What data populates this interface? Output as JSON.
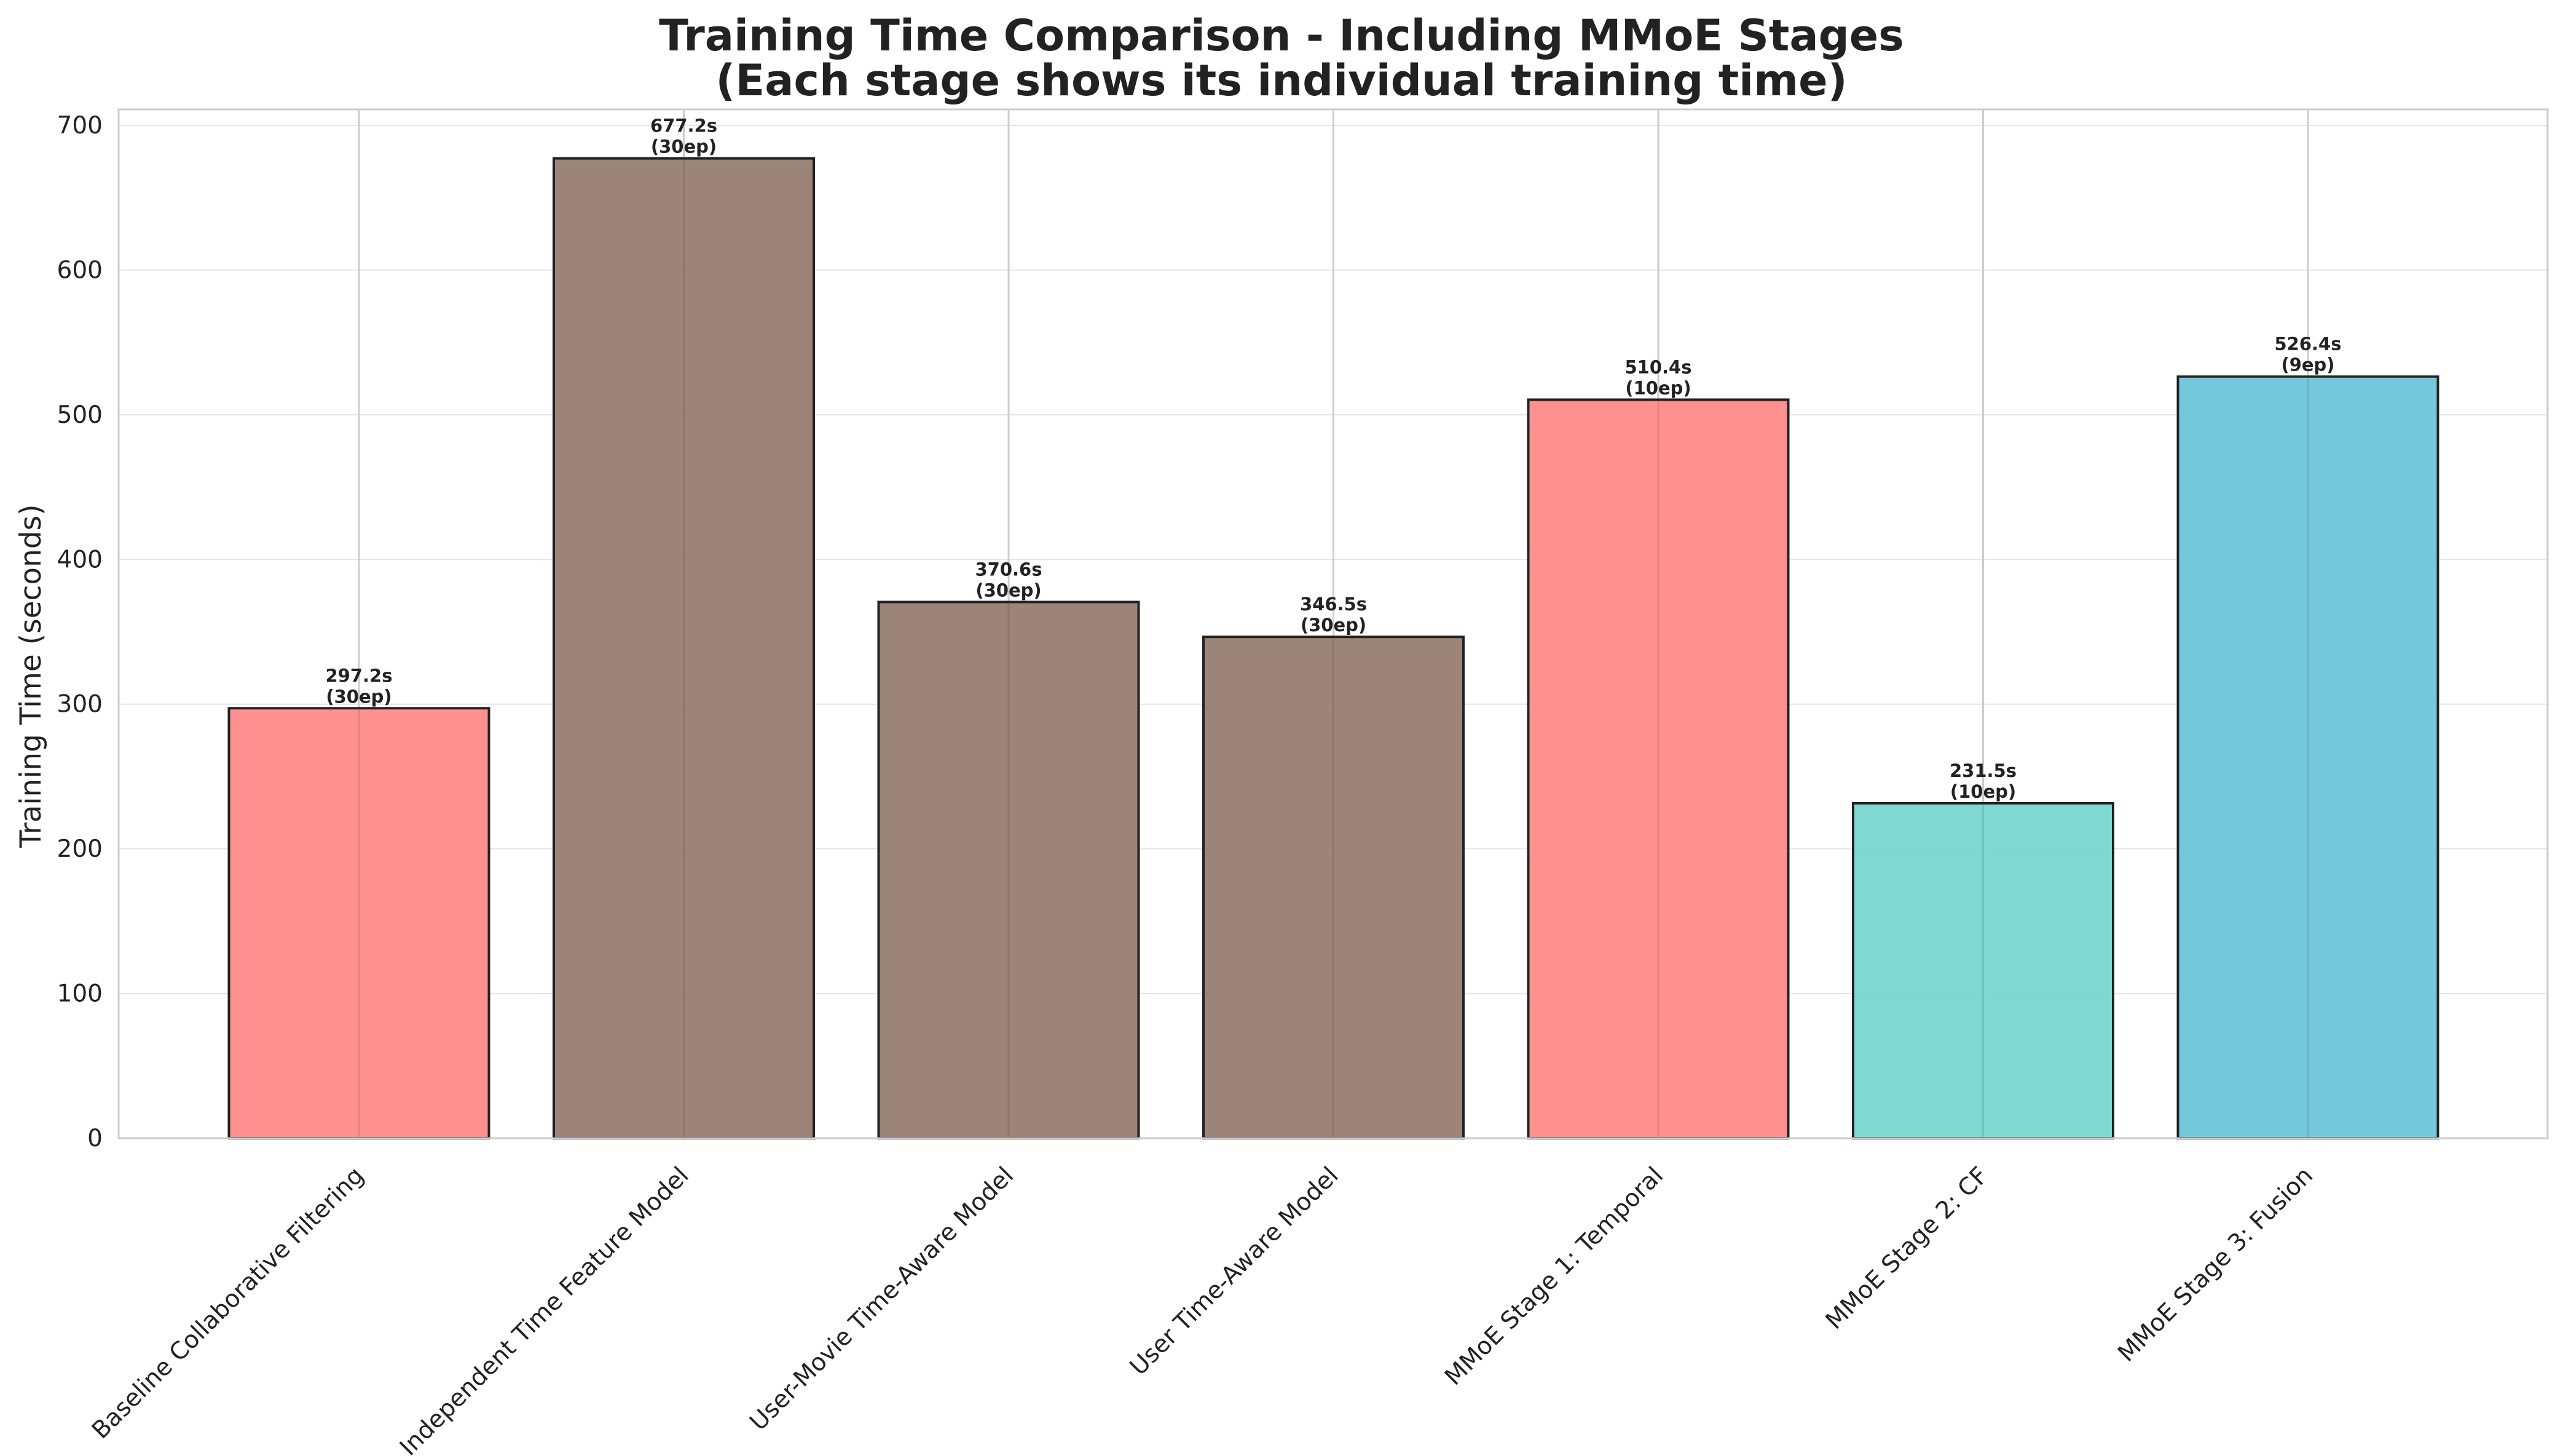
{
  "chart_data": {
    "type": "bar",
    "title": "Training Time Comparison - Including MMoE Stages",
    "subtitle": "(Each stage shows its individual training time)",
    "xlabel": "",
    "ylabel": "Training Time (seconds)",
    "ylim": [
      0,
      710
    ],
    "yticks": [
      0,
      100,
      200,
      300,
      400,
      500,
      600,
      700
    ],
    "grid": true,
    "categories": [
      "Baseline Collaborative Filtering",
      "Independent Time Feature Model",
      "User-Movie Time-Aware Model",
      "User Time-Aware Model",
      "MMoE Stage 1: Temporal",
      "MMoE Stage 2: CF",
      "MMoE Stage 3: Fusion"
    ],
    "values": [
      297.2,
      677.2,
      370.6,
      346.5,
      510.4,
      231.5,
      526.4
    ],
    "value_labels": [
      "297.2s",
      "677.2s",
      "370.6s",
      "346.5s",
      "510.4s",
      "231.5s",
      "526.4s"
    ],
    "epoch_labels": [
      "(30ep)",
      "(30ep)",
      "(30ep)",
      "(30ep)",
      "(10ep)",
      "(10ep)",
      "(9ep)"
    ],
    "colors": [
      "#ff8787",
      "#957a6d",
      "#957a6d",
      "#957a6d",
      "#ff8787",
      "#74d6cd",
      "#69c3d8"
    ]
  }
}
